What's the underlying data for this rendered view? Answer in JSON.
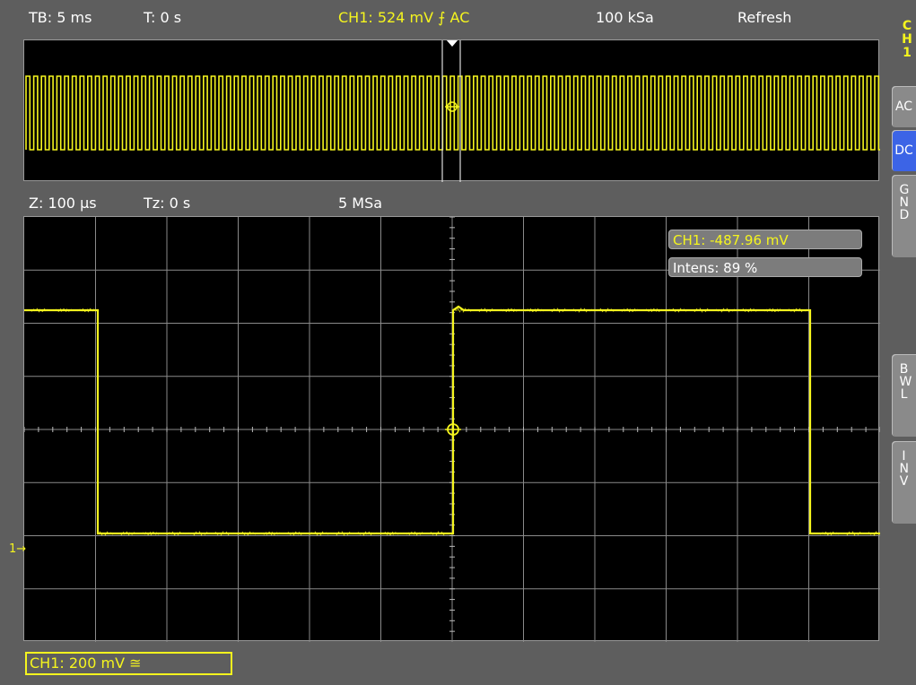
{
  "top_bar": {
    "timebase": "TB: 5 ms",
    "trigger_time": "T: 0 s",
    "channel_trigger": "CH1: 524 mV ⨍ AC",
    "sample_rate": "100 kSa",
    "mode": "Refresh"
  },
  "zoom_bar": {
    "zoom": "Z: 100 µs",
    "zoom_time": "Tz: 0 s",
    "sample_rate": "5 MSa"
  },
  "side_panel": {
    "channel_label": [
      "C",
      "H",
      "1"
    ],
    "buttons": [
      {
        "label": "AC",
        "active": false
      },
      {
        "label": "DC",
        "active": true
      },
      {
        "label": "G N D",
        "active": false
      },
      {
        "label": "B W L",
        "active": false
      },
      {
        "label": "I N V",
        "active": false
      }
    ]
  },
  "readouts": {
    "ch1_value": "CH1: -487.96 mV",
    "intensity": "Intens: 89 %"
  },
  "channel_scale": "CH1: 200 mV ≅",
  "ground_marker": "1",
  "colors": {
    "trace": "#f5f51e",
    "background": "#000000",
    "grid": "#8a8a8a",
    "active_button": "#3c64e6"
  }
}
